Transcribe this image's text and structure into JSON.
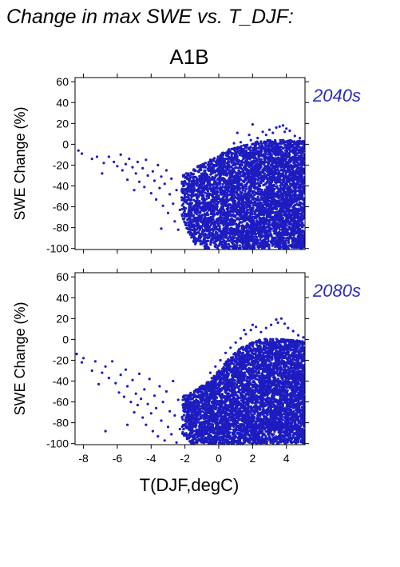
{
  "figure": {
    "title": "Change in max SWE vs. T_DJF:",
    "scenario": "A1B",
    "xlabel": "T(DJF,degC)"
  },
  "colors": {
    "points": "#1c1cc0",
    "period_label": "#2a2ab8",
    "axis": "#000000"
  },
  "chart_data": [
    {
      "type": "scatter",
      "period": "2040s",
      "ylabel": "SWE Change (%)",
      "xlim": [
        -8.5,
        5.1
      ],
      "ylim": [
        -101,
        64
      ],
      "xticks": [
        -8,
        -6,
        -4,
        -2,
        0,
        2,
        4
      ],
      "yticks": [
        -100,
        -80,
        -60,
        -40,
        -20,
        0,
        20,
        40,
        60
      ],
      "show_xtick_labels": false,
      "grid": false,
      "sparse_points": [
        [
          -8.3,
          -6
        ],
        [
          -8.1,
          -9
        ],
        [
          -7.5,
          -14
        ],
        [
          -7.2,
          -12
        ],
        [
          -6.9,
          -28
        ],
        [
          -6.8,
          -18
        ],
        [
          -6.5,
          -12
        ],
        [
          -6.2,
          -17
        ],
        [
          -6.0,
          -21
        ],
        [
          -5.8,
          -10
        ],
        [
          -5.7,
          -25
        ],
        [
          -5.5,
          -19
        ],
        [
          -5.4,
          -34
        ],
        [
          -5.3,
          -14
        ],
        [
          -5.1,
          -22
        ],
        [
          -5.0,
          -44
        ],
        [
          -4.9,
          -28
        ],
        [
          -4.8,
          -17
        ],
        [
          -4.7,
          -36
        ],
        [
          -4.5,
          -23
        ],
        [
          -4.4,
          -41
        ],
        [
          -4.3,
          -15
        ],
        [
          -4.2,
          -30
        ],
        [
          -4.0,
          -47
        ],
        [
          -3.9,
          -26
        ],
        [
          -3.8,
          -35
        ],
        [
          -3.7,
          -53
        ],
        [
          -3.6,
          -20
        ],
        [
          -3.5,
          -42
        ],
        [
          -3.4,
          -31
        ],
        [
          -3.3,
          -59
        ],
        [
          -3.2,
          -38
        ],
        [
          -3.1,
          -25
        ],
        [
          -3.0,
          -66
        ],
        [
          -2.9,
          -48
        ],
        [
          -2.8,
          -33
        ],
        [
          -2.7,
          -57
        ],
        [
          -2.6,
          -74
        ],
        [
          -2.5,
          -44
        ],
        [
          -2.4,
          -82
        ],
        [
          -2.3,
          -63
        ],
        [
          -2.2,
          -51
        ],
        [
          -3.4,
          -81
        ],
        [
          0.6,
          -5
        ],
        [
          0.9,
          1
        ],
        [
          1.3,
          2
        ],
        [
          1.8,
          9
        ],
        [
          1.9,
          4
        ],
        [
          2.3,
          6
        ],
        [
          2.6,
          12
        ],
        [
          2.8,
          9
        ],
        [
          3.0,
          14
        ],
        [
          3.2,
          11
        ],
        [
          3.4,
          16
        ],
        [
          3.6,
          17
        ],
        [
          3.8,
          18
        ],
        [
          3.9,
          12
        ],
        [
          4.0,
          15
        ],
        [
          4.2,
          13
        ],
        [
          4.5,
          8
        ],
        [
          4.8,
          6
        ],
        [
          2.0,
          19
        ],
        [
          1.1,
          11
        ]
      ],
      "dense_region": {
        "x_range": [
          -2.2,
          5.1
        ],
        "y_bottom": -100,
        "upper_envelope": [
          [
            -2.2,
            -30
          ],
          [
            -1.5,
            -24
          ],
          [
            -1.0,
            -18
          ],
          [
            -0.5,
            -14
          ],
          [
            0.0,
            -10
          ],
          [
            0.5,
            -6
          ],
          [
            1.0,
            -3
          ],
          [
            1.5,
            0
          ],
          [
            2.0,
            2
          ],
          [
            3.0,
            4
          ],
          [
            4.0,
            4
          ],
          [
            5.1,
            3
          ]
        ],
        "lower_envelope": [
          [
            -2.2,
            -68
          ],
          [
            -1.8,
            -85
          ],
          [
            -1.4,
            -96
          ],
          [
            -0.8,
            -100
          ],
          [
            5.1,
            -100
          ]
        ]
      }
    },
    {
      "type": "scatter",
      "period": "2080s",
      "ylabel": "SWE Change (%)",
      "xlim": [
        -8.5,
        5.1
      ],
      "ylim": [
        -101,
        64
      ],
      "xticks": [
        -8,
        -6,
        -4,
        -2,
        0,
        2,
        4
      ],
      "yticks": [
        -100,
        -80,
        -60,
        -40,
        -20,
        0,
        20,
        40,
        60
      ],
      "show_xtick_labels": true,
      "grid": false,
      "sparse_points": [
        [
          -8.4,
          -14
        ],
        [
          -8.1,
          -22
        ],
        [
          -8.0,
          -18
        ],
        [
          -7.5,
          -30
        ],
        [
          -7.3,
          -21
        ],
        [
          -7.1,
          -43
        ],
        [
          -6.9,
          -32
        ],
        [
          -6.7,
          -26
        ],
        [
          -6.5,
          -37
        ],
        [
          -6.3,
          -21
        ],
        [
          -6.1,
          -42
        ],
        [
          -5.9,
          -51
        ],
        [
          -5.8,
          -34
        ],
        [
          -5.6,
          -55
        ],
        [
          -5.5,
          -29
        ],
        [
          -5.4,
          -45
        ],
        [
          -5.2,
          -60
        ],
        [
          -5.1,
          -39
        ],
        [
          -5.0,
          -70
        ],
        [
          -4.9,
          -52
        ],
        [
          -4.8,
          -63
        ],
        [
          -4.7,
          -33
        ],
        [
          -4.6,
          -57
        ],
        [
          -4.5,
          -75
        ],
        [
          -4.4,
          -48
        ],
        [
          -4.3,
          -82
        ],
        [
          -4.2,
          -62
        ],
        [
          -4.1,
          -38
        ],
        [
          -4.0,
          -71
        ],
        [
          -3.9,
          -88
        ],
        [
          -3.8,
          -54
        ],
        [
          -3.7,
          -66
        ],
        [
          -3.6,
          -93
        ],
        [
          -3.5,
          -45
        ],
        [
          -3.4,
          -78
        ],
        [
          -3.3,
          -60
        ],
        [
          -3.2,
          -97
        ],
        [
          -3.1,
          -50
        ],
        [
          -3.0,
          -84
        ],
        [
          -2.9,
          -69
        ],
        [
          -2.8,
          -91
        ],
        [
          -2.7,
          -40
        ],
        [
          -2.6,
          -73
        ],
        [
          -2.5,
          -99
        ],
        [
          -2.4,
          -58
        ],
        [
          -2.3,
          -86
        ],
        [
          -5.4,
          -82
        ],
        [
          -6.7,
          -88
        ],
        [
          -0.5,
          -32
        ],
        [
          -0.2,
          -26
        ],
        [
          0.1,
          -20
        ],
        [
          0.4,
          -13
        ],
        [
          0.7,
          -8
        ],
        [
          1.0,
          -3
        ],
        [
          1.3,
          1
        ],
        [
          1.6,
          5
        ],
        [
          1.9,
          9
        ],
        [
          2.2,
          12
        ],
        [
          2.5,
          7
        ],
        [
          2.8,
          11
        ],
        [
          3.1,
          14
        ],
        [
          3.4,
          19
        ],
        [
          3.5,
          16
        ],
        [
          3.7,
          20
        ],
        [
          3.9,
          15
        ],
        [
          4.1,
          11
        ],
        [
          4.4,
          8
        ],
        [
          4.7,
          4
        ],
        [
          5.0,
          2
        ],
        [
          2.0,
          14
        ],
        [
          1.5,
          9
        ]
      ],
      "dense_region": {
        "x_range": [
          -2.2,
          5.1
        ],
        "y_bottom": -100,
        "upper_envelope": [
          [
            -2.2,
            -55
          ],
          [
            -1.5,
            -50
          ],
          [
            -1.0,
            -44
          ],
          [
            -0.5,
            -38
          ],
          [
            0.0,
            -30
          ],
          [
            0.5,
            -20
          ],
          [
            1.0,
            -12
          ],
          [
            1.5,
            -6
          ],
          [
            2.0,
            -2
          ],
          [
            2.5,
            0
          ],
          [
            3.0,
            1
          ],
          [
            4.0,
            0
          ],
          [
            5.1,
            -2
          ]
        ],
        "lower_envelope": [
          [
            -2.2,
            -90
          ],
          [
            -1.6,
            -100
          ],
          [
            5.1,
            -100
          ]
        ]
      }
    }
  ]
}
